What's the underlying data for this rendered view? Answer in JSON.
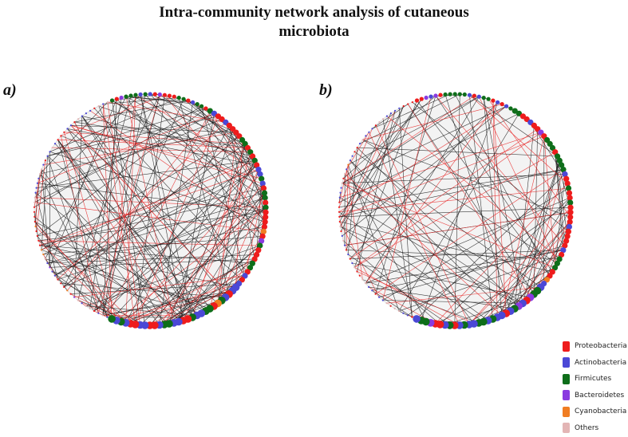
{
  "title_line1": "Intra-community network analysis of cutaneous",
  "title_line2": "microbiota",
  "panels": [
    {
      "label": "a)",
      "network": "a"
    },
    {
      "label": "b)",
      "network": "b"
    }
  ],
  "edge_colors": {
    "positive": "#1a1a1a",
    "negative": "#e82020"
  },
  "legend": [
    {
      "label": "Proteobacteria",
      "color": "#ee1c1c"
    },
    {
      "label": "Actinobacteria",
      "color": "#4b48d6"
    },
    {
      "label": "Firmicutes",
      "color": "#0e6e1a"
    },
    {
      "label": "Bacteroidetes",
      "color": "#8a3ae0"
    },
    {
      "label": "Cyanobacteria",
      "color": "#f07d22"
    },
    {
      "label": "Others",
      "color": "#e3b5b5"
    }
  ]
}
